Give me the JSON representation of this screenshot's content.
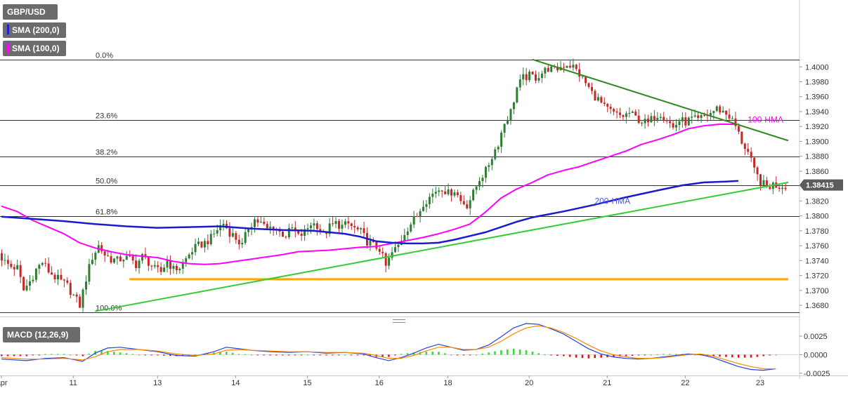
{
  "chart_data": [
    {
      "type": "candlestick",
      "symbol_label": "GBP/USD",
      "indicators": [
        {
          "label": "SMA (200,0)",
          "color": "#2020d8"
        },
        {
          "label": "SMA (100,0)",
          "color": "#ff00ff"
        }
      ],
      "ylim": [
        1.3665,
        1.4085
      ],
      "y_ticks": [
        "1.3680",
        "1.3700",
        "1.3720",
        "1.3740",
        "1.3760",
        "1.3780",
        "1.3800",
        "1.3820",
        "1.3840",
        "1.3860",
        "1.3880",
        "1.3900",
        "1.3920",
        "1.3940",
        "1.3960",
        "1.3980",
        "1.4000"
      ],
      "x_tick_labels": [
        {
          "label": "Apr",
          "i": 0
        },
        {
          "label": "11",
          "i": 23
        },
        {
          "label": "13",
          "i": 50
        },
        {
          "label": "14",
          "i": 75
        },
        {
          "label": "15",
          "i": 98
        },
        {
          "label": "16",
          "i": 121
        },
        {
          "label": "18",
          "i": 143
        },
        {
          "label": "20",
          "i": 169
        },
        {
          "label": "21",
          "i": 194
        },
        {
          "label": "22",
          "i": 219
        },
        {
          "label": "23",
          "i": 243
        }
      ],
      "current_price": "1.38415",
      "fibonacci": [
        {
          "label": "0.0%",
          "value": 1.401
        },
        {
          "label": "23.6%",
          "value": 1.3929
        },
        {
          "label": "38.2%",
          "value": 1.388
        },
        {
          "label": "50.0%",
          "value": 1.3841
        },
        {
          "label": "61.8%",
          "value": 1.38
        },
        {
          "label": "100.0%",
          "value": 1.3671
        }
      ],
      "trendlines": [
        {
          "name": "resistance",
          "color": "#2e8b1f",
          "from": {
            "i": 170,
            "y": 1.401
          },
          "to": {
            "i": 252,
            "y": 1.3901
          }
        },
        {
          "name": "support",
          "color": "#33cc33",
          "from": {
            "i": 30,
            "y": 1.3672
          },
          "to": {
            "i": 252,
            "y": 1.3845
          }
        }
      ],
      "horizontal_levels": [
        {
          "name": "support-level",
          "color": "#ffa500",
          "value": 1.3715,
          "from_i": 41,
          "to_i": 252
        }
      ],
      "annotations": [
        {
          "text": "100-HMA",
          "color": "#ff00ff",
          "i": 239,
          "y": 1.3929
        },
        {
          "text": "200-HMA",
          "color": "#4a5de0",
          "i": 190,
          "y": 1.382
        }
      ],
      "hma100": [
        [
          0,
          1.3813
        ],
        [
          5,
          1.3806
        ],
        [
          10,
          1.3794
        ],
        [
          15,
          1.3785
        ],
        [
          20,
          1.3776
        ],
        [
          25,
          1.3764
        ],
        [
          30,
          1.3757
        ],
        [
          35,
          1.3752
        ],
        [
          40,
          1.3748
        ],
        [
          45,
          1.3746
        ],
        [
          50,
          1.3744
        ],
        [
          55,
          1.3739
        ],
        [
          60,
          1.3736
        ],
        [
          65,
          1.3735
        ],
        [
          70,
          1.3736
        ],
        [
          75,
          1.3739
        ],
        [
          80,
          1.3742
        ],
        [
          85,
          1.3745
        ],
        [
          90,
          1.3748
        ],
        [
          95,
          1.3752
        ],
        [
          100,
          1.3753
        ],
        [
          105,
          1.3754
        ],
        [
          110,
          1.3756
        ],
        [
          115,
          1.3758
        ],
        [
          120,
          1.3759
        ],
        [
          125,
          1.3763
        ],
        [
          130,
          1.3767
        ],
        [
          135,
          1.3771
        ],
        [
          140,
          1.3776
        ],
        [
          145,
          1.3782
        ],
        [
          150,
          1.3789
        ],
        [
          155,
          1.3805
        ],
        [
          160,
          1.3824
        ],
        [
          165,
          1.3836
        ],
        [
          170,
          1.3845
        ],
        [
          175,
          1.3855
        ],
        [
          180,
          1.3861
        ],
        [
          185,
          1.3866
        ],
        [
          190,
          1.3873
        ],
        [
          195,
          1.388
        ],
        [
          200,
          1.3887
        ],
        [
          205,
          1.3896
        ],
        [
          210,
          1.3902
        ],
        [
          215,
          1.3909
        ],
        [
          220,
          1.3917
        ],
        [
          225,
          1.3921
        ],
        [
          230,
          1.3923
        ],
        [
          235,
          1.3923
        ]
      ],
      "hma200": [
        [
          0,
          1.3799
        ],
        [
          10,
          1.3796
        ],
        [
          20,
          1.3793
        ],
        [
          30,
          1.3789
        ],
        [
          40,
          1.3786
        ],
        [
          50,
          1.3784
        ],
        [
          60,
          1.3785
        ],
        [
          70,
          1.3786
        ],
        [
          80,
          1.3783
        ],
        [
          90,
          1.3781
        ],
        [
          100,
          1.378
        ],
        [
          110,
          1.3776
        ],
        [
          115,
          1.3772
        ],
        [
          120,
          1.3766
        ],
        [
          125,
          1.3764
        ],
        [
          130,
          1.3763
        ],
        [
          135,
          1.3763
        ],
        [
          140,
          1.3764
        ],
        [
          145,
          1.3768
        ],
        [
          150,
          1.3773
        ],
        [
          155,
          1.3778
        ],
        [
          160,
          1.3785
        ],
        [
          165,
          1.3792
        ],
        [
          170,
          1.3798
        ],
        [
          180,
          1.3806
        ],
        [
          190,
          1.3815
        ],
        [
          200,
          1.3825
        ],
        [
          210,
          1.3834
        ],
        [
          218,
          1.3841
        ],
        [
          225,
          1.3845
        ],
        [
          232,
          1.3846
        ],
        [
          236,
          1.3847
        ]
      ],
      "candles_close_path": [
        [
          0,
          1.375
        ],
        [
          2,
          1.3738
        ],
        [
          4,
          1.3732
        ],
        [
          6,
          1.373
        ],
        [
          8,
          1.37
        ],
        [
          10,
          1.3712
        ],
        [
          12,
          1.3728
        ],
        [
          14,
          1.3738
        ],
        [
          16,
          1.3726
        ],
        [
          18,
          1.3718
        ],
        [
          20,
          1.3712
        ],
        [
          22,
          1.3706
        ],
        [
          24,
          1.3693
        ],
        [
          26,
          1.368
        ],
        [
          28,
          1.3716
        ],
        [
          30,
          1.3745
        ],
        [
          32,
          1.376
        ],
        [
          34,
          1.3748
        ],
        [
          36,
          1.3742
        ],
        [
          38,
          1.374
        ],
        [
          40,
          1.3744
        ],
        [
          42,
          1.3742
        ],
        [
          44,
          1.3735
        ],
        [
          46,
          1.3745
        ],
        [
          48,
          1.3738
        ],
        [
          50,
          1.3728
        ],
        [
          52,
          1.3725
        ],
        [
          54,
          1.374
        ],
        [
          56,
          1.3728
        ],
        [
          58,
          1.3731
        ],
        [
          60,
          1.3742
        ],
        [
          62,
          1.3754
        ],
        [
          64,
          1.376
        ],
        [
          66,
          1.3764
        ],
        [
          68,
          1.377
        ],
        [
          70,
          1.3782
        ],
        [
          72,
          1.379
        ],
        [
          74,
          1.3778
        ],
        [
          76,
          1.377
        ],
        [
          78,
          1.376
        ],
        [
          80,
          1.3785
        ],
        [
          82,
          1.3795
        ],
        [
          84,
          1.379
        ],
        [
          86,
          1.3782
        ],
        [
          88,
          1.3786
        ],
        [
          90,
          1.3778
        ],
        [
          92,
          1.3774
        ],
        [
          94,
          1.3783
        ],
        [
          96,
          1.3772
        ],
        [
          98,
          1.3778
        ],
        [
          100,
          1.379
        ],
        [
          102,
          1.3788
        ],
        [
          104,
          1.3774
        ],
        [
          106,
          1.3785
        ],
        [
          108,
          1.379
        ],
        [
          110,
          1.3786
        ],
        [
          112,
          1.3789
        ],
        [
          114,
          1.3783
        ],
        [
          116,
          1.3778
        ],
        [
          118,
          1.3766
        ],
        [
          120,
          1.376
        ],
        [
          122,
          1.3756
        ],
        [
          124,
          1.3732
        ],
        [
          126,
          1.375
        ],
        [
          128,
          1.376
        ],
        [
          130,
          1.3778
        ],
        [
          132,
          1.379
        ],
        [
          134,
          1.38
        ],
        [
          136,
          1.3818
        ],
        [
          138,
          1.3825
        ],
        [
          140,
          1.3834
        ],
        [
          142,
          1.3838
        ],
        [
          144,
          1.383
        ],
        [
          146,
          1.3835
        ],
        [
          148,
          1.382
        ],
        [
          150,
          1.3815
        ],
        [
          152,
          1.383
        ],
        [
          154,
          1.385
        ],
        [
          156,
          1.386
        ],
        [
          158,
          1.388
        ],
        [
          160,
          1.3898
        ],
        [
          162,
          1.3925
        ],
        [
          164,
          1.394
        ],
        [
          166,
          1.3972
        ],
        [
          168,
          1.3985
        ],
        [
          170,
          1.3988
        ],
        [
          172,
          1.3986
        ],
        [
          174,
          1.3992
        ],
        [
          176,
          1.3998
        ],
        [
          178,
          1.3995
        ],
        [
          180,
          1.4
        ],
        [
          182,
          1.4004
        ],
        [
          184,
          1.4
        ],
        [
          186,
          1.399
        ],
        [
          188,
          1.3978
        ],
        [
          190,
          1.3965
        ],
        [
          192,
          1.3956
        ],
        [
          194,
          1.3945
        ],
        [
          196,
          1.394
        ],
        [
          198,
          1.3935
        ],
        [
          200,
          1.3934
        ],
        [
          202,
          1.3938
        ],
        [
          204,
          1.3932
        ],
        [
          206,
          1.3927
        ],
        [
          208,
          1.3924
        ],
        [
          210,
          1.3934
        ],
        [
          212,
          1.3938
        ],
        [
          214,
          1.393
        ],
        [
          216,
          1.3918
        ],
        [
          218,
          1.3928
        ],
        [
          220,
          1.3926
        ],
        [
          222,
          1.393
        ],
        [
          224,
          1.3928
        ],
        [
          226,
          1.3934
        ],
        [
          228,
          1.3938
        ],
        [
          230,
          1.3944
        ],
        [
          232,
          1.394
        ],
        [
          234,
          1.3934
        ],
        [
          236,
          1.392
        ],
        [
          238,
          1.39
        ],
        [
          240,
          1.3885
        ],
        [
          242,
          1.386
        ],
        [
          244,
          1.3846
        ],
        [
          246,
          1.3838
        ],
        [
          248,
          1.3842
        ],
        [
          250,
          1.384
        ],
        [
          252,
          1.3841
        ]
      ],
      "n_bars": 253
    },
    {
      "type": "macd",
      "label": "MACD (12,26,9)",
      "ylim": [
        -0.0028,
        0.0042
      ],
      "y_ticks": [
        "0.0025",
        "0.0000",
        "-0.0025"
      ],
      "macd": [
        [
          0,
          -0.0006
        ],
        [
          8,
          -0.0008
        ],
        [
          14,
          -0.0005
        ],
        [
          20,
          -0.0004
        ],
        [
          26,
          -0.0009
        ],
        [
          30,
          0.0002
        ],
        [
          34,
          0.0009
        ],
        [
          38,
          0.001
        ],
        [
          44,
          0.0007
        ],
        [
          50,
          0.0004
        ],
        [
          56,
          -0.0001
        ],
        [
          62,
          -0.0002
        ],
        [
          68,
          0.0004
        ],
        [
          72,
          0.001
        ],
        [
          76,
          0.0008
        ],
        [
          80,
          0.0006
        ],
        [
          86,
          0.0004
        ],
        [
          92,
          0.0003
        ],
        [
          98,
          0.0004
        ],
        [
          104,
          0.0002
        ],
        [
          110,
          0.0003
        ],
        [
          116,
          0.0001
        ],
        [
          120,
          -0.0004
        ],
        [
          124,
          -0.0008
        ],
        [
          128,
          -0.0004
        ],
        [
          132,
          0.0002
        ],
        [
          136,
          0.0009
        ],
        [
          140,
          0.0014
        ],
        [
          144,
          0.001
        ],
        [
          148,
          0.0006
        ],
        [
          152,
          0.0007
        ],
        [
          156,
          0.0013
        ],
        [
          160,
          0.0024
        ],
        [
          164,
          0.0036
        ],
        [
          168,
          0.0042
        ],
        [
          172,
          0.0041
        ],
        [
          176,
          0.0035
        ],
        [
          180,
          0.0028
        ],
        [
          184,
          0.0018
        ],
        [
          188,
          0.0008
        ],
        [
          192,
          0.0001
        ],
        [
          196,
          -0.0003
        ],
        [
          200,
          -0.0005
        ],
        [
          204,
          -0.0006
        ],
        [
          208,
          -0.0005
        ],
        [
          212,
          -0.0003
        ],
        [
          216,
          -0.0001
        ],
        [
          220,
          0.0001
        ],
        [
          224,
          0.0
        ],
        [
          228,
          -0.0004
        ],
        [
          232,
          -0.001
        ],
        [
          236,
          -0.0016
        ],
        [
          240,
          -0.002
        ],
        [
          244,
          -0.0021
        ],
        [
          248,
          -0.0019
        ]
      ],
      "signal": [
        [
          0,
          -0.0004
        ],
        [
          8,
          -0.0006
        ],
        [
          14,
          -0.0006
        ],
        [
          20,
          -0.0005
        ],
        [
          26,
          -0.0007
        ],
        [
          30,
          -0.0003
        ],
        [
          34,
          0.0004
        ],
        [
          38,
          0.0007
        ],
        [
          44,
          0.0007
        ],
        [
          50,
          0.0005
        ],
        [
          56,
          0.0001
        ],
        [
          62,
          -0.0001
        ],
        [
          68,
          0.0001
        ],
        [
          72,
          0.0006
        ],
        [
          76,
          0.0007
        ],
        [
          80,
          0.0006
        ],
        [
          86,
          0.0005
        ],
        [
          92,
          0.0004
        ],
        [
          98,
          0.0004
        ],
        [
          104,
          0.0003
        ],
        [
          110,
          0.0003
        ],
        [
          116,
          0.0002
        ],
        [
          120,
          -0.0001
        ],
        [
          124,
          -0.0005
        ],
        [
          128,
          -0.0005
        ],
        [
          132,
          -0.0001
        ],
        [
          136,
          0.0005
        ],
        [
          140,
          0.001
        ],
        [
          144,
          0.001
        ],
        [
          148,
          0.0007
        ],
        [
          152,
          0.0007
        ],
        [
          156,
          0.001
        ],
        [
          160,
          0.0018
        ],
        [
          164,
          0.0028
        ],
        [
          168,
          0.0036
        ],
        [
          172,
          0.0039
        ],
        [
          176,
          0.0036
        ],
        [
          180,
          0.003
        ],
        [
          184,
          0.0022
        ],
        [
          188,
          0.0013
        ],
        [
          192,
          0.0005
        ],
        [
          196,
          0.0
        ],
        [
          200,
          -0.0003
        ],
        [
          204,
          -0.0005
        ],
        [
          208,
          -0.0005
        ],
        [
          212,
          -0.0004
        ],
        [
          216,
          -0.0002
        ],
        [
          220,
          0.0
        ],
        [
          224,
          0.0001
        ],
        [
          228,
          -0.0002
        ],
        [
          232,
          -0.0007
        ],
        [
          236,
          -0.0012
        ],
        [
          240,
          -0.0016
        ],
        [
          244,
          -0.0019
        ],
        [
          248,
          -0.0019
        ]
      ]
    }
  ]
}
